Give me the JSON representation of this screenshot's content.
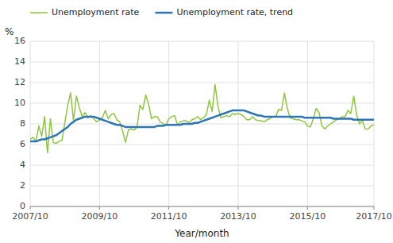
{
  "chart_data": {
    "type": "line",
    "x_label": "Year/month",
    "y_label": "%",
    "categories": [
      "2007/10",
      null,
      null,
      null,
      null,
      null,
      null,
      null,
      null,
      null,
      null,
      null,
      null,
      null,
      null,
      null,
      null,
      null,
      null,
      null,
      null,
      null,
      null,
      null,
      "2009/10",
      null,
      null,
      null,
      null,
      null,
      null,
      null,
      null,
      null,
      null,
      null,
      null,
      null,
      null,
      null,
      null,
      null,
      null,
      null,
      null,
      null,
      null,
      null,
      "2011/10",
      null,
      null,
      null,
      null,
      null,
      null,
      null,
      null,
      null,
      null,
      null,
      null,
      null,
      null,
      null,
      null,
      null,
      null,
      null,
      null,
      null,
      null,
      null,
      "2013/10",
      null,
      null,
      null,
      null,
      null,
      null,
      null,
      null,
      null,
      null,
      null,
      null,
      null,
      null,
      null,
      null,
      null,
      null,
      null,
      null,
      null,
      null,
      null,
      "2015/10",
      null,
      null,
      null,
      null,
      null,
      null,
      null,
      null,
      null,
      null,
      null,
      null,
      null,
      null,
      null,
      null,
      null,
      null,
      null,
      null,
      null,
      null,
      "2017/10"
    ],
    "series": [
      {
        "name": "Unemployment rate",
        "color": "#8dc63f",
        "values": [
          6.5,
          6.7,
          6.3,
          7.8,
          6.8,
          8.7,
          5.2,
          8.5,
          6.2,
          6.1,
          6.3,
          6.4,
          8.1,
          9.8,
          11.0,
          8.3,
          10.7,
          9.6,
          8.7,
          9.1,
          8.6,
          8.8,
          8.5,
          8.2,
          8.4,
          8.6,
          9.3,
          8.5,
          8.9,
          9.0,
          8.4,
          8.2,
          7.3,
          6.2,
          7.4,
          7.5,
          7.4,
          7.7,
          9.8,
          9.4,
          10.8,
          9.9,
          8.5,
          8.7,
          8.7,
          8.2,
          8.0,
          7.9,
          8.5,
          8.7,
          8.8,
          7.9,
          8.2,
          8.3,
          8.3,
          8.1,
          8.4,
          8.5,
          8.7,
          8.4,
          8.6,
          8.9,
          10.3,
          9.2,
          11.8,
          9.7,
          8.6,
          8.7,
          8.8,
          8.7,
          9.0,
          8.9,
          9.0,
          8.9,
          8.7,
          8.4,
          8.4,
          8.7,
          8.4,
          8.3,
          8.3,
          8.2,
          8.4,
          8.5,
          8.7,
          8.7,
          9.4,
          9.3,
          11.0,
          9.5,
          8.6,
          8.5,
          8.4,
          8.4,
          8.3,
          8.2,
          7.8,
          7.7,
          8.5,
          9.5,
          9.1,
          7.8,
          7.5,
          7.8,
          8.0,
          8.2,
          8.4,
          8.5,
          8.7,
          8.7,
          9.3,
          9.0,
          10.7,
          8.9,
          8.0,
          8.3,
          7.5,
          7.5,
          7.8,
          7.9
        ]
      },
      {
        "name": "Unemployment rate, trend",
        "color": "#2e75b6",
        "values": [
          6.3,
          6.3,
          6.3,
          6.4,
          6.5,
          6.5,
          6.6,
          6.7,
          6.8,
          6.9,
          7.1,
          7.3,
          7.5,
          7.7,
          8.0,
          8.2,
          8.4,
          8.5,
          8.6,
          8.7,
          8.7,
          8.7,
          8.7,
          8.6,
          8.5,
          8.4,
          8.3,
          8.2,
          8.1,
          8.0,
          7.9,
          7.9,
          7.8,
          7.7,
          7.7,
          7.7,
          7.7,
          7.7,
          7.7,
          7.7,
          7.7,
          7.7,
          7.7,
          7.7,
          7.8,
          7.8,
          7.8,
          7.9,
          7.9,
          7.9,
          7.9,
          7.9,
          7.9,
          8.0,
          8.0,
          8.0,
          8.0,
          8.1,
          8.1,
          8.2,
          8.3,
          8.4,
          8.5,
          8.6,
          8.7,
          8.8,
          8.9,
          9.0,
          9.1,
          9.2,
          9.3,
          9.3,
          9.3,
          9.3,
          9.3,
          9.2,
          9.1,
          9.0,
          8.9,
          8.8,
          8.8,
          8.7,
          8.7,
          8.7,
          8.7,
          8.7,
          8.7,
          8.7,
          8.7,
          8.7,
          8.7,
          8.7,
          8.7,
          8.7,
          8.7,
          8.6,
          8.6,
          8.6,
          8.6,
          8.6,
          8.6,
          8.6,
          8.6,
          8.6,
          8.6,
          8.5,
          8.5,
          8.5,
          8.5,
          8.5,
          8.5,
          8.5,
          8.4,
          8.4,
          8.4,
          8.4,
          8.4,
          8.4,
          8.4,
          8.4
        ]
      }
    ],
    "ylim": [
      0,
      16
    ],
    "yticks": [
      0,
      2,
      4,
      6,
      8,
      10,
      12,
      14,
      16
    ],
    "grid": true,
    "legend": "top"
  }
}
